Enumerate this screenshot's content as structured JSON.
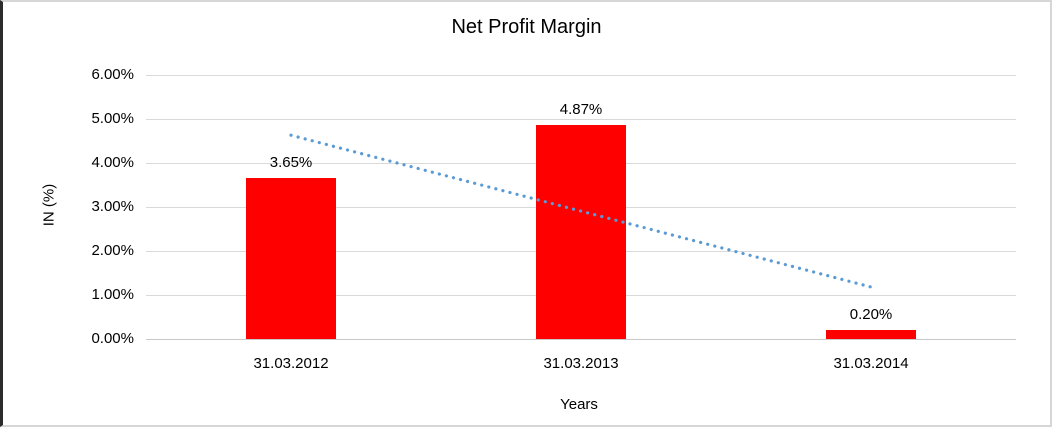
{
  "canvas": {
    "background": "#FFFFFF",
    "border_dark": "#2B2B2B",
    "border_light": "#D6D6D6"
  },
  "chart_data": {
    "type": "bar",
    "title": "Net Profit Margin",
    "xlabel": "Years",
    "ylabel": "IN (%)",
    "categories": [
      "31.03.2012",
      "31.03.2013",
      "31.03.2014"
    ],
    "values": [
      3.65,
      4.87,
      0.2
    ],
    "data_labels": [
      "3.65%",
      "4.87%",
      "0.20%"
    ],
    "y_ticks": [
      "0.00%",
      "1.00%",
      "2.00%",
      "3.00%",
      "4.00%",
      "5.00%",
      "6.00%"
    ],
    "ylim": [
      0,
      6
    ],
    "grid": "horizontal",
    "legend": "none",
    "bar_color": "#FF0000",
    "gridline_color": "#D9D9D9",
    "axis_line_color": "#C9C9C9",
    "text_color": "#000000",
    "trendline": {
      "type": "linear",
      "style": "dotted",
      "color": "#5B9BD5"
    }
  }
}
